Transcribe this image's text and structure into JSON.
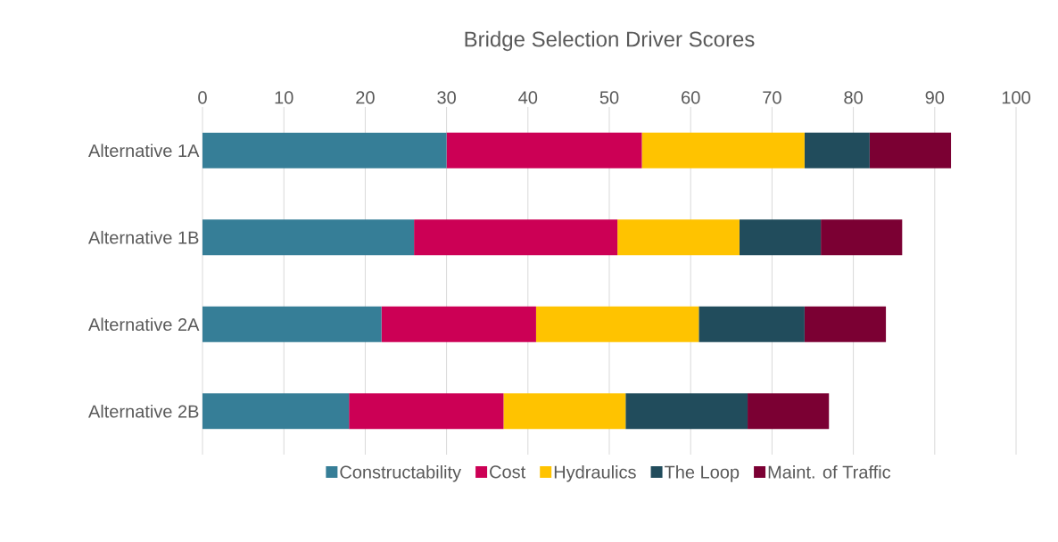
{
  "chart_data": {
    "type": "bar",
    "orientation": "horizontal",
    "stacked": true,
    "title": "Bridge Selection Driver Scores",
    "categories": [
      "Alternative 1A",
      "Alternative 1B",
      "Alternative 2A",
      "Alternative 2B"
    ],
    "series": [
      {
        "name": "Constructability",
        "color": "#367e97",
        "values": [
          30,
          26,
          22,
          18
        ]
      },
      {
        "name": "Cost",
        "color": "#cc0055",
        "values": [
          24,
          25,
          19,
          19
        ]
      },
      {
        "name": "Hydraulics",
        "color": "#ffc300",
        "values": [
          20,
          15,
          20,
          15
        ]
      },
      {
        "name": "The Loop",
        "color": "#214c5c",
        "values": [
          8,
          10,
          13,
          15
        ]
      },
      {
        "name": "Maint. of Traffic",
        "color": "#7b0033",
        "values": [
          10,
          10,
          10,
          10
        ]
      }
    ],
    "xlim": [
      0,
      100
    ],
    "xticks": [
      0,
      10,
      20,
      30,
      40,
      50,
      60,
      70,
      80,
      90,
      100
    ],
    "grid": "x",
    "legend": "bottom"
  }
}
